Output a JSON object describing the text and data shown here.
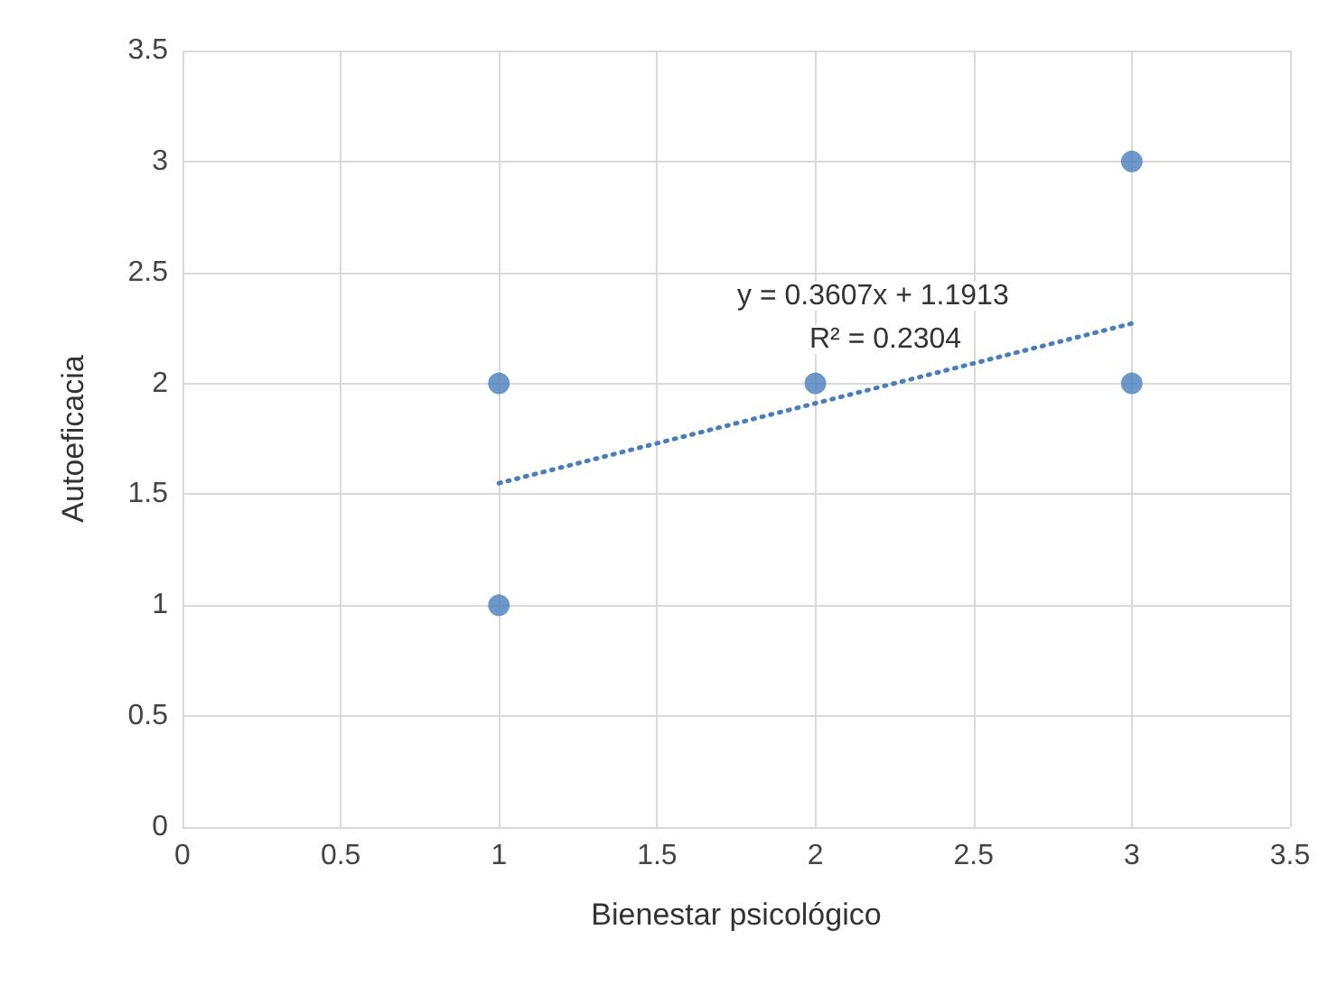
{
  "chart_data": {
    "type": "scatter",
    "xlabel": "Bienestar psicológico",
    "ylabel": "Autoeficacia",
    "xlim": [
      0,
      3.5
    ],
    "xticks": [
      0,
      0.5,
      1,
      1.5,
      2,
      2.5,
      3,
      3.5
    ],
    "ylim": [
      0,
      3.5
    ],
    "yticks": [
      0,
      0.5,
      1,
      1.5,
      2,
      2.5,
      3,
      3.5
    ],
    "grid": true,
    "marker": "circle",
    "series": [
      {
        "color": "#4a7ebb",
        "x": [
          1,
          1,
          2,
          3,
          3
        ],
        "values": [
          2,
          1,
          2,
          3,
          2
        ]
      },
      {
        "type": "line",
        "color": "#4a7ebb",
        "line_style": "dotted",
        "marker": "none",
        "x": [
          1,
          3
        ],
        "values": [
          1.55,
          2.27
        ]
      }
    ],
    "annotations": [
      "y = 0.3607x + 1.1913",
      "R² = 0.2304"
    ]
  }
}
